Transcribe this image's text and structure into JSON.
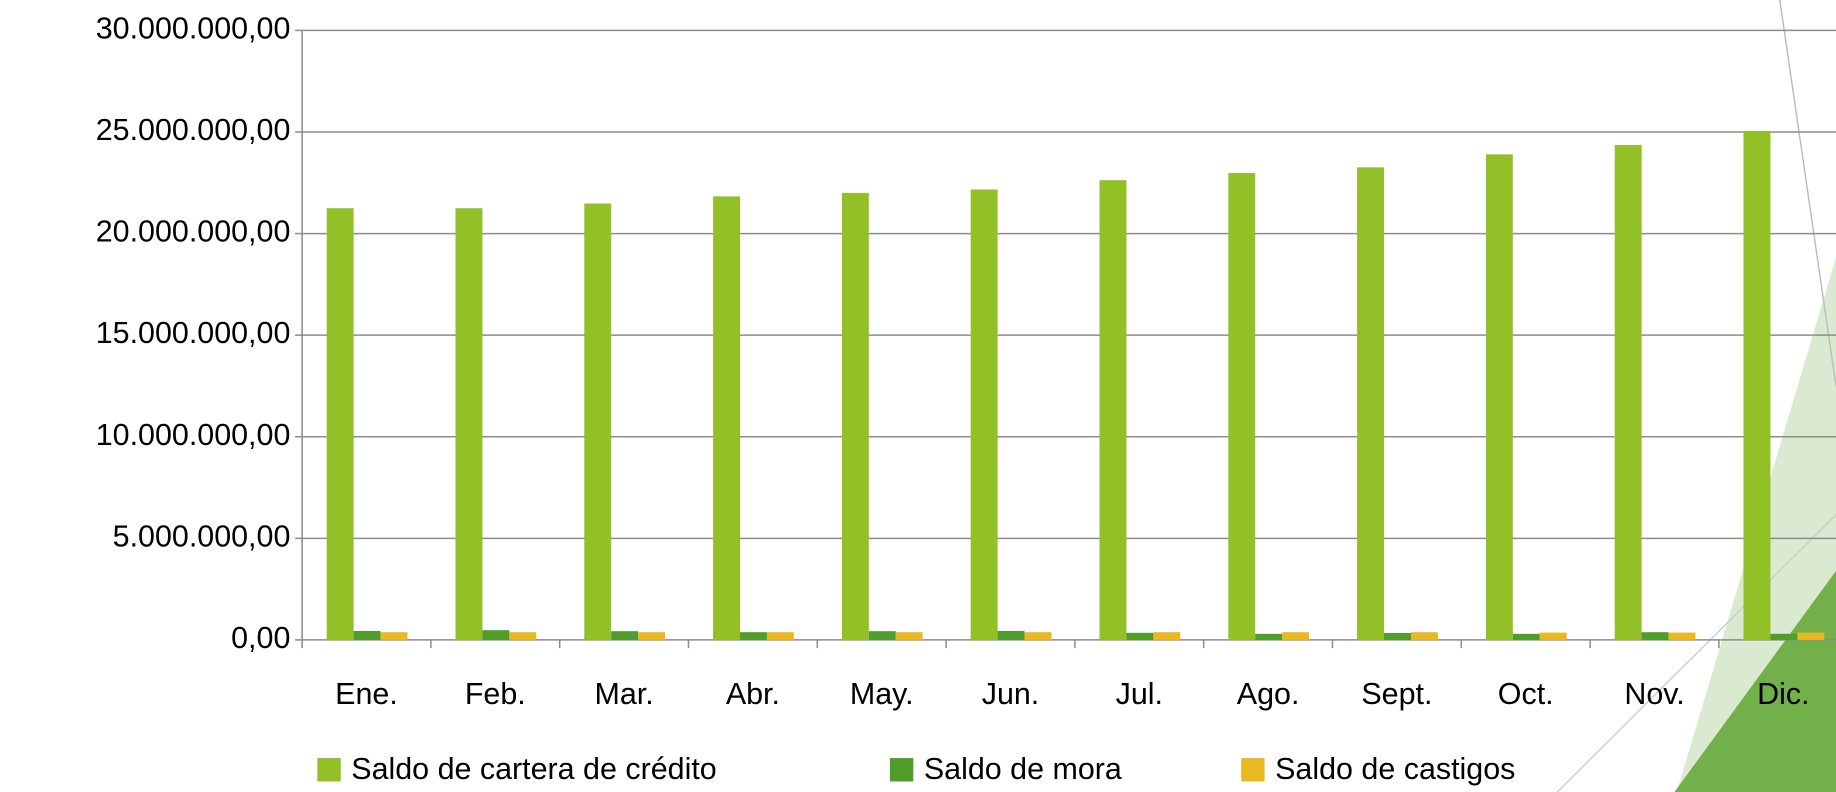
{
  "chart_data": {
    "type": "bar",
    "categories": [
      "Ene.",
      "Feb.",
      "Mar.",
      "Abr.",
      "May.",
      "Jun.",
      "Jul.",
      "Ago.",
      "Sept.",
      "Oct.",
      "Nov.",
      "Dic."
    ],
    "series": [
      {
        "name": "Saldo de cartera de crédito",
        "color": "#92c026",
        "values": [
          21250000,
          21250000,
          21480000,
          21830000,
          22000000,
          22170000,
          22630000,
          22980000,
          23260000,
          23900000,
          24360000,
          25050000
        ]
      },
      {
        "name": "Saldo de mora",
        "color": "#509d2c",
        "values": [
          440000,
          480000,
          430000,
          380000,
          430000,
          440000,
          350000,
          300000,
          340000,
          300000,
          380000,
          300000
        ]
      },
      {
        "name": "Saldo de castigos",
        "color": "#e8b922",
        "values": [
          380000,
          380000,
          380000,
          380000,
          380000,
          380000,
          380000,
          380000,
          380000,
          360000,
          360000,
          360000
        ]
      }
    ],
    "ylim": [
      0,
      30000000
    ],
    "yticks": [
      {
        "value": 0,
        "label": "0,00"
      },
      {
        "value": 5000000,
        "label": "5.000.000,00"
      },
      {
        "value": 10000000,
        "label": "10.000.000,00"
      },
      {
        "value": 15000000,
        "label": "15.000.000,00"
      },
      {
        "value": 20000000,
        "label": "20.000.000,00"
      },
      {
        "value": 25000000,
        "label": "25.000.000,00"
      },
      {
        "value": 30000000,
        "label": "30.000.000,00"
      }
    ],
    "grid": true,
    "legend": "bottom"
  }
}
